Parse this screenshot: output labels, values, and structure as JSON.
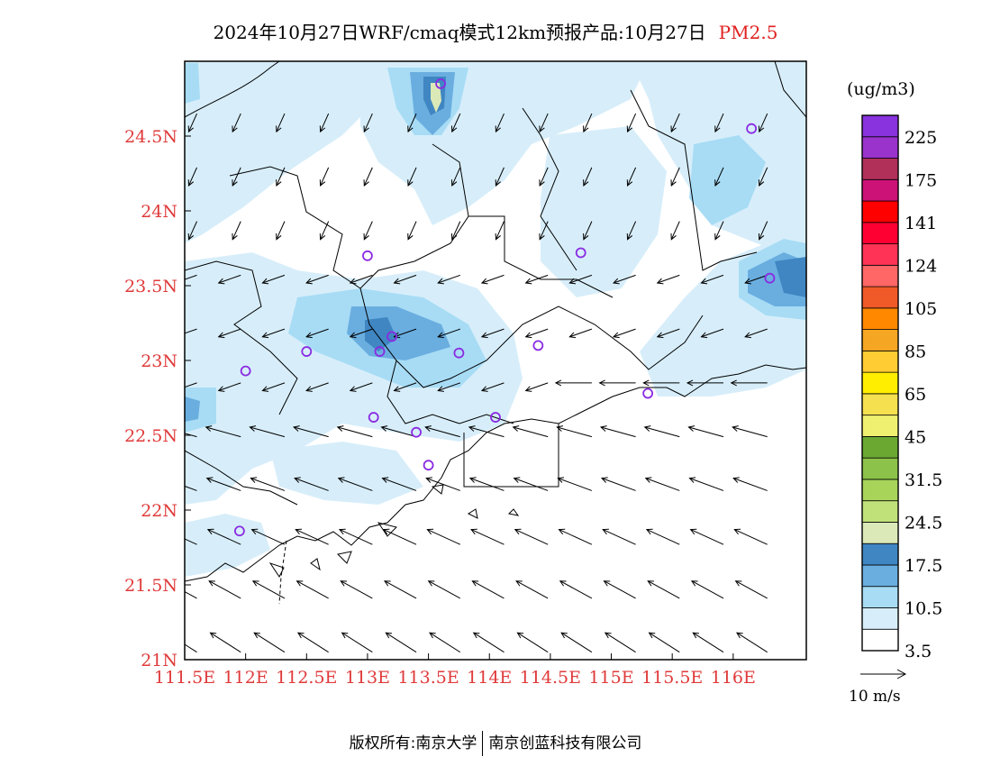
{
  "title": {
    "main": "2024年10月27日WRF/cmaq模式12km预报产品:10月27日",
    "species": "PM2.5"
  },
  "colors": {
    "axis_label": "#e03a3a",
    "title_species": "#e02020"
  },
  "map": {
    "lon_ticks": [
      "111.5E",
      "112E",
      "112.5E",
      "113E",
      "113.5E",
      "114E",
      "114.5E",
      "115E",
      "115.5E",
      "116E"
    ],
    "lat_ticks": [
      "21N",
      "21.5N",
      "22N",
      "22.5N",
      "23N",
      "23.5N",
      "24N",
      "24.5N"
    ],
    "lon_range": [
      111.5,
      116.6
    ],
    "lat_range": [
      21.0,
      25.0
    ],
    "stations": [
      [
        113.6,
        24.85
      ],
      [
        116.15,
        24.55
      ],
      [
        113.0,
        23.7
      ],
      [
        114.75,
        23.72
      ],
      [
        116.3,
        23.55
      ],
      [
        113.2,
        23.16
      ],
      [
        113.1,
        23.06
      ],
      [
        112.5,
        23.06
      ],
      [
        112.0,
        22.93
      ],
      [
        113.75,
        23.05
      ],
      [
        114.4,
        23.1
      ],
      [
        115.3,
        22.78
      ],
      [
        113.05,
        22.62
      ],
      [
        113.4,
        22.52
      ],
      [
        114.05,
        22.62
      ],
      [
        113.5,
        22.3
      ],
      [
        111.95,
        21.86
      ]
    ]
  },
  "legend": {
    "unit": "(ug/m3)",
    "levels": [
      "225",
      "175",
      "141",
      "124",
      "105",
      "85",
      "65",
      "45",
      "31.5",
      "24.5",
      "17.5",
      "10.5",
      "3.5"
    ],
    "colors_bottom_to_top": [
      "#ffffff",
      "#d7eefa",
      "#a8dcf5",
      "#6aaee0",
      "#3f86c2",
      "#dbe9b8",
      "#c0e07a",
      "#a8d45a",
      "#8cc24a",
      "#6aa832",
      "#f0f070",
      "#f5e050",
      "#ffee00",
      "#ffcc33",
      "#f5a623",
      "#ff8800",
      "#f05a28",
      "#ff6666",
      "#ff3355",
      "#ff0033",
      "#ff0000",
      "#cc1177",
      "#b0305a",
      "#9933cc",
      "#8833dd"
    ],
    "wind_scale_label": "10 m/s"
  },
  "footer": {
    "left": "版权所有:南京大学",
    "right": "南京创蓝科技有限公司"
  }
}
